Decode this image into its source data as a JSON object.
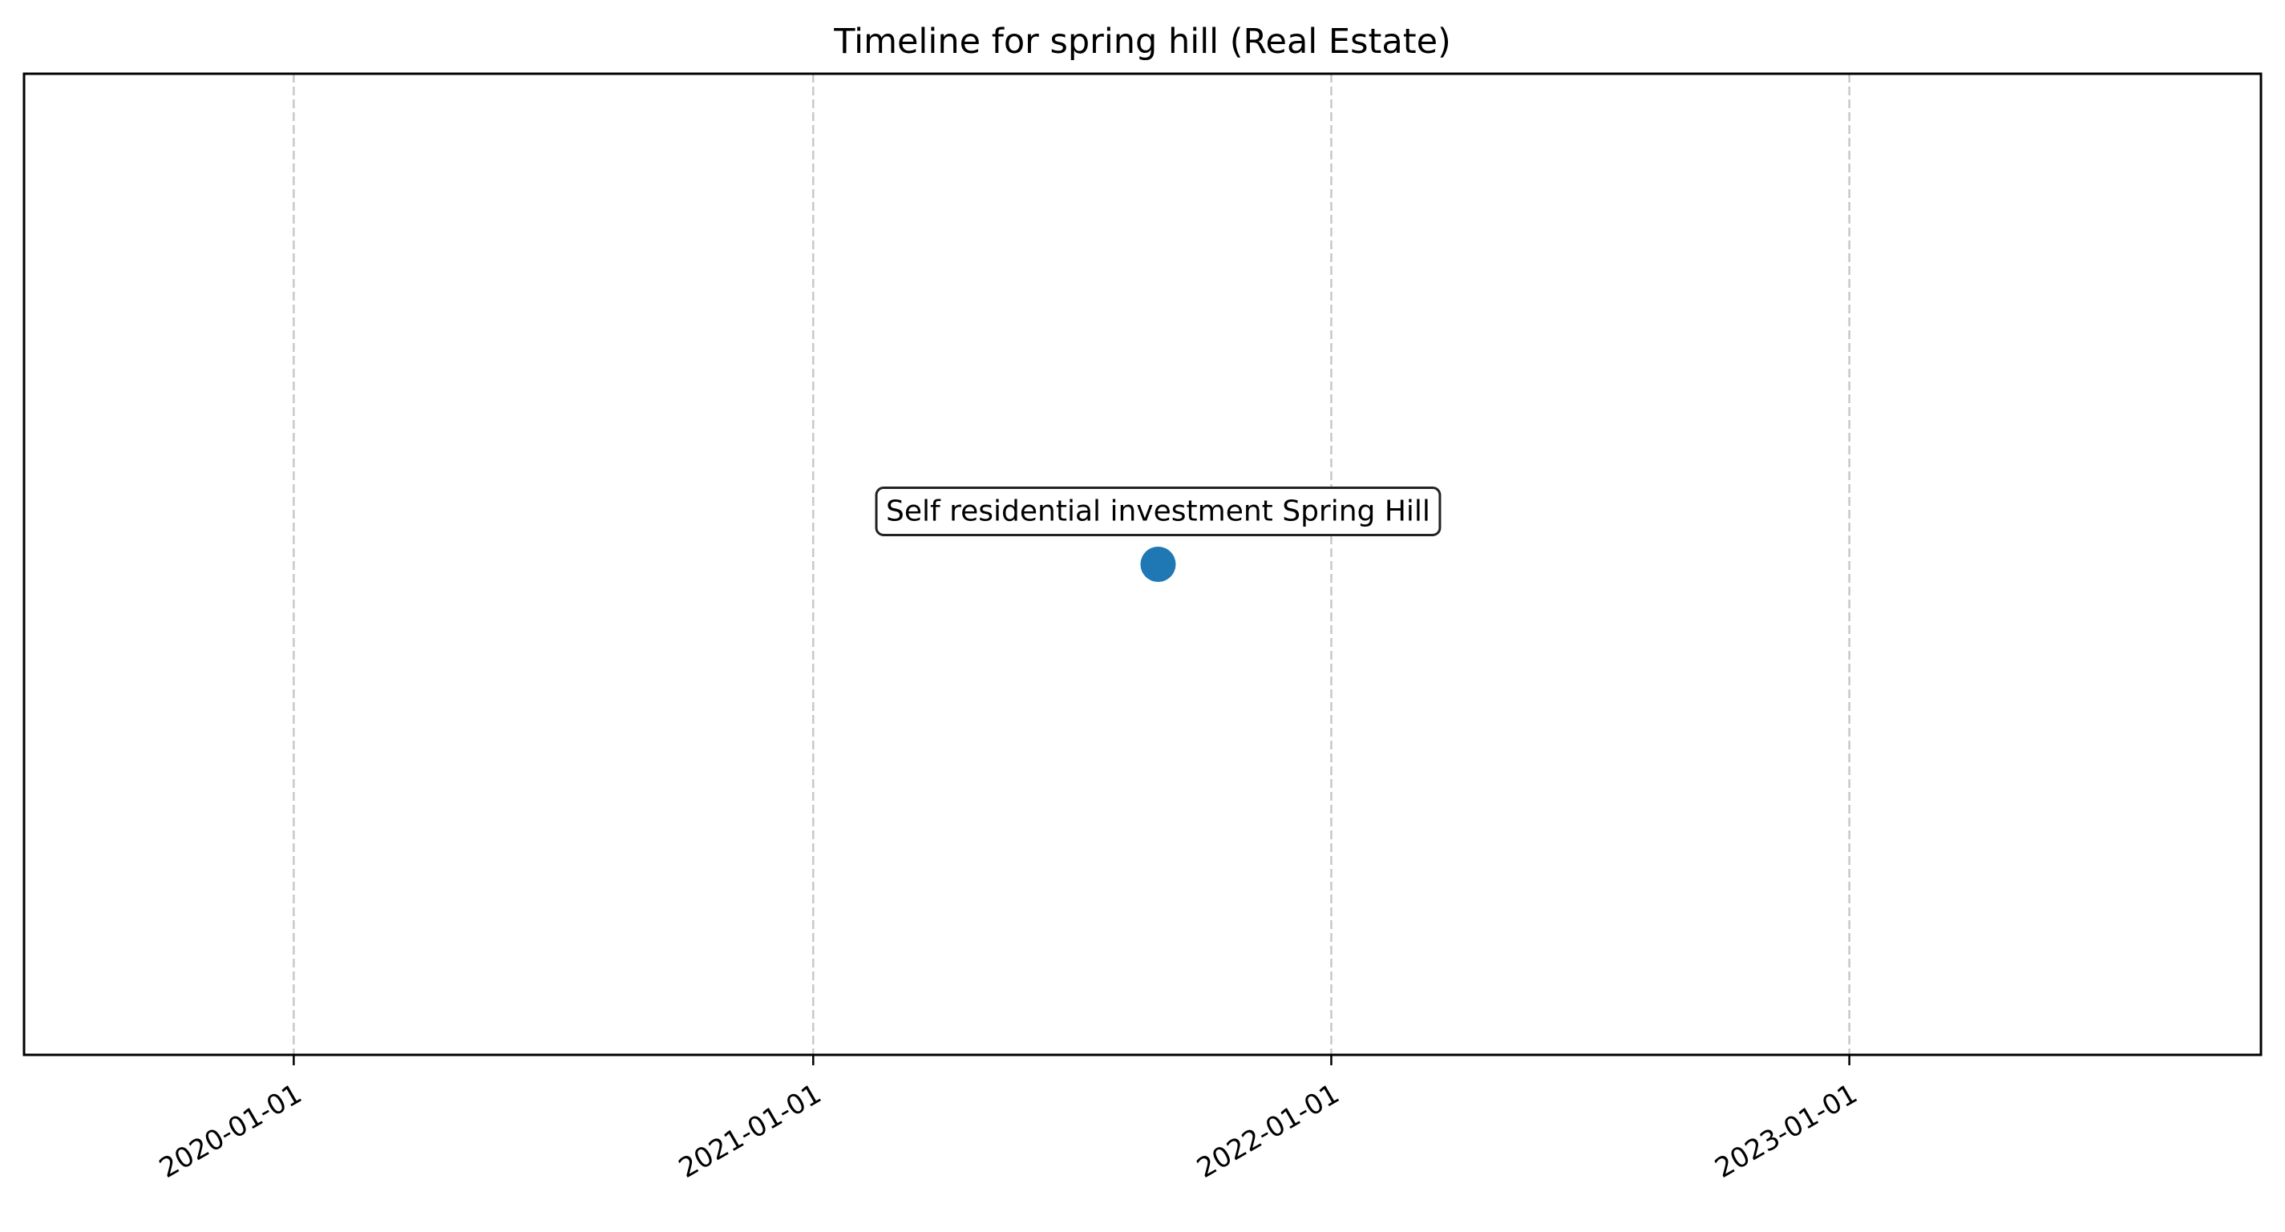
{
  "chart_data": {
    "type": "scatter",
    "title": "Timeline for spring hill (Real Estate)",
    "xlabel": "",
    "ylabel": "",
    "x_axis": {
      "kind": "date",
      "xlim": [
        "2019-06-25",
        "2023-10-18"
      ],
      "ticks": [
        "2020-01-01",
        "2021-01-01",
        "2022-01-01",
        "2023-01-01"
      ],
      "tick_labels": [
        "2020-01-01",
        "2021-01-01",
        "2022-01-01",
        "2023-01-01"
      ],
      "tick_label_rotation": 30
    },
    "y_axis": {
      "visible": false,
      "ylim": [
        -1,
        1
      ]
    },
    "grid": {
      "x": true,
      "y": false,
      "style": "dashed",
      "color": "#c8c8c8"
    },
    "series": [
      {
        "color": "#1f77b4",
        "points": [
          {
            "x": "2021-09-01",
            "y": 0,
            "label": "Self residential investment Spring Hill"
          }
        ]
      }
    ],
    "annotation_box": {
      "facecolor": "#ffffff",
      "edgecolor": "#222222"
    }
  }
}
